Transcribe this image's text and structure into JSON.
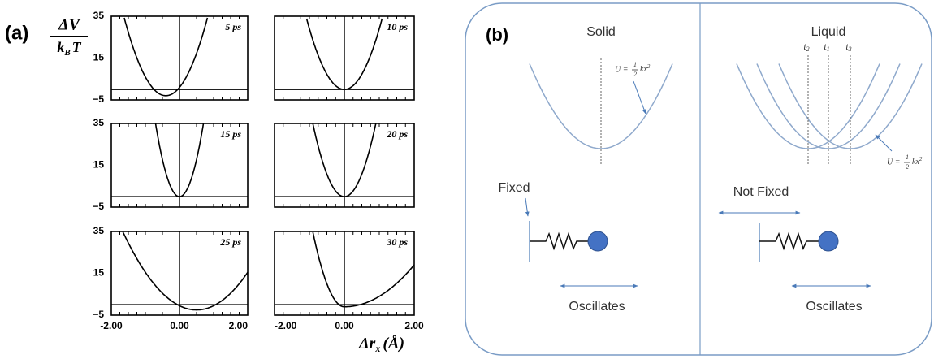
{
  "panel_a": {
    "label": "(a)",
    "y_label": {
      "numerator": "ΔV",
      "denominator_base": "k",
      "denominator_subscript": "B",
      "denominator_tail": "T"
    },
    "y_ticks": [
      "35",
      "15",
      "−5"
    ],
    "x_ticks": [
      "-2.00",
      "0.00",
      "2.00"
    ],
    "x_label": {
      "base": "Δr",
      "subscript": "x",
      "unit": "(Å)"
    },
    "plots": [
      {
        "time": "5 ps"
      },
      {
        "time": "10 ps"
      },
      {
        "time": "15 ps"
      },
      {
        "time": "20 ps"
      },
      {
        "time": "25 ps"
      },
      {
        "time": "30 ps"
      }
    ]
  },
  "panel_b": {
    "label": "(b)",
    "formula": {
      "lhs": "U =",
      "numerator": "1",
      "denominator": "2",
      "body": "kx",
      "exponent": "2"
    },
    "solid": {
      "title": "Solid",
      "support": "Fixed",
      "motion": "Oscillates"
    },
    "liquid": {
      "title": "Liquid",
      "times": [
        {
          "base": "t",
          "sub": "2"
        },
        {
          "base": "t",
          "sub": "1"
        },
        {
          "base": "t",
          "sub": "3"
        }
      ],
      "support": "Not Fixed",
      "motion": "Oscillates"
    }
  }
}
